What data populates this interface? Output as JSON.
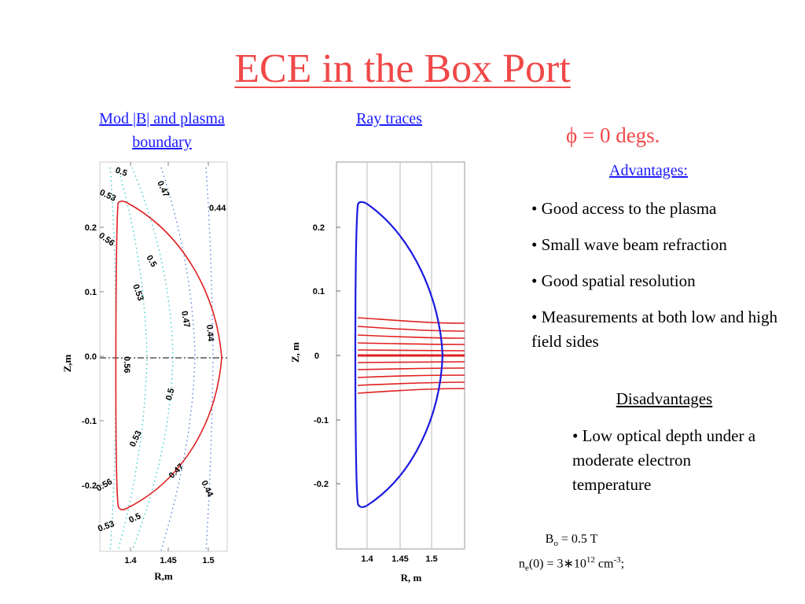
{
  "title": "ECE in the Box Port",
  "left_plot": {
    "caption_line1": "Mod |B| and plasma",
    "caption_line2": "boundary",
    "xlabel": "R,m",
    "ylabel": "Z,m",
    "xticks": [
      "1.4",
      "1.45",
      "1.5"
    ],
    "yticks": [
      "0.2",
      "0.1",
      "0.0",
      "-0.1",
      "-0.2"
    ],
    "contour_labels": [
      "0.5",
      "0.47",
      "0.53",
      "0.44",
      "0.56",
      "0.5",
      "0.53",
      "0.47",
      "0.44",
      "0.56",
      "0.5",
      "0.53",
      "0.47",
      "0.44",
      "0.56",
      "0.53",
      "0.5"
    ]
  },
  "right_plot": {
    "caption": "Ray traces",
    "xlabel": "R, m",
    "ylabel": "Z, m",
    "xticks": [
      "1.4",
      "1.45",
      "1.5"
    ],
    "yticks": [
      "0.2",
      "0.1",
      "0",
      "-0.1",
      "-0.2"
    ]
  },
  "phi_label": "ϕ = 0 degs.",
  "advantages": {
    "heading": "Advantages:",
    "items": [
      "• Good access to the plasma",
      "• Small wave beam refraction",
      "• Good spatial resolution",
      "• Measurements at both low and high field sides"
    ]
  },
  "disadvantages": {
    "heading": "Disadvantages",
    "text": "• Low optical depth under a moderate electron temperature"
  },
  "params": {
    "b0_label": "B",
    "b0_sub": "o",
    "b0_value": " = 0.5 T",
    "ne_label": "n",
    "ne_sub": "e",
    "ne_value": "(0) = 3∗10",
    "ne_exp": "12",
    "ne_unit": " cm",
    "ne_unit_exp": "-3",
    "ne_end": ";"
  },
  "colors": {
    "title": "#f04848",
    "link_caption": "#1a1aff",
    "boundary_left": "#e02020",
    "boundary_right": "#1a1ae0",
    "rays": "#e02020",
    "contour_blue": "#5b7fe8",
    "contour_cyan": "#38c8c8"
  }
}
